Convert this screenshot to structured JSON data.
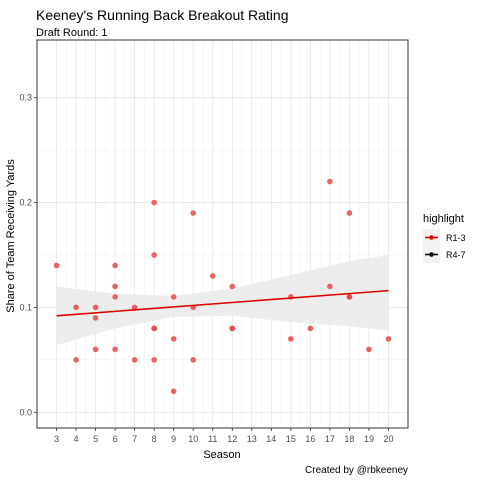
{
  "chart_data": {
    "type": "scatter",
    "title": "Keeney's Running Back Breakout Rating",
    "subtitle": "Draft Round: 1",
    "xlabel": "Season",
    "ylabel": "Share of Team Receiving Yards",
    "caption": "Created by @rbkeeney",
    "xlim": [
      2,
      21
    ],
    "ylim": [
      -0.015,
      0.355
    ],
    "x_ticks": [
      3,
      4,
      5,
      6,
      7,
      8,
      9,
      10,
      11,
      12,
      13,
      14,
      15,
      16,
      17,
      18,
      19,
      20
    ],
    "y_ticks": [
      0.0,
      0.1,
      0.2,
      0.3
    ],
    "y_tick_labels": [
      "0.0",
      "0.1",
      "0.2",
      "0.3"
    ],
    "grid": true,
    "legend": {
      "title": "highlight",
      "position": "right",
      "entries": [
        {
          "label": "R1-3",
          "color": "#dd0000"
        },
        {
          "label": "R4-7",
          "color": "#000000"
        }
      ]
    },
    "series": [
      {
        "name": "R1-3",
        "color": "#e8474c",
        "points": [
          {
            "x": 3,
            "y": 0.14
          },
          {
            "x": 4,
            "y": 0.1
          },
          {
            "x": 4,
            "y": 0.05
          },
          {
            "x": 5,
            "y": 0.1
          },
          {
            "x": 5,
            "y": 0.09
          },
          {
            "x": 5,
            "y": 0.06
          },
          {
            "x": 6,
            "y": 0.14
          },
          {
            "x": 6,
            "y": 0.12
          },
          {
            "x": 6,
            "y": 0.11
          },
          {
            "x": 6,
            "y": 0.06
          },
          {
            "x": 7,
            "y": 0.1
          },
          {
            "x": 7,
            "y": 0.05
          },
          {
            "x": 8,
            "y": 0.2
          },
          {
            "x": 8,
            "y": 0.15
          },
          {
            "x": 8,
            "y": 0.08
          },
          {
            "x": 8,
            "y": 0.08
          },
          {
            "x": 8,
            "y": 0.05
          },
          {
            "x": 9,
            "y": 0.11
          },
          {
            "x": 9,
            "y": 0.07
          },
          {
            "x": 9,
            "y": 0.02
          },
          {
            "x": 10,
            "y": 0.19
          },
          {
            "x": 10,
            "y": 0.1
          },
          {
            "x": 10,
            "y": 0.05
          },
          {
            "x": 11,
            "y": 0.13
          },
          {
            "x": 12,
            "y": 0.12
          },
          {
            "x": 12,
            "y": 0.08
          },
          {
            "x": 12,
            "y": 0.08
          },
          {
            "x": 15,
            "y": 0.11
          },
          {
            "x": 15,
            "y": 0.07
          },
          {
            "x": 16,
            "y": 0.08
          },
          {
            "x": 17,
            "y": 0.22
          },
          {
            "x": 17,
            "y": 0.12
          },
          {
            "x": 18,
            "y": 0.19
          },
          {
            "x": 18,
            "y": 0.11
          },
          {
            "x": 18,
            "y": 0.11
          },
          {
            "x": 19,
            "y": 0.06
          },
          {
            "x": 20,
            "y": 0.07
          }
        ]
      }
    ],
    "trend": {
      "color": "#dd0000",
      "band_color": "#ebebeb",
      "points": [
        {
          "x": 3,
          "y": 0.092,
          "lo": 0.064,
          "hi": 0.12
        },
        {
          "x": 6,
          "y": 0.096,
          "lo": 0.08,
          "hi": 0.113
        },
        {
          "x": 9,
          "y": 0.101,
          "lo": 0.091,
          "hi": 0.111
        },
        {
          "x": 12,
          "y": 0.105,
          "lo": 0.092,
          "hi": 0.118
        },
        {
          "x": 15,
          "y": 0.109,
          "lo": 0.086,
          "hi": 0.131
        },
        {
          "x": 18,
          "y": 0.113,
          "lo": 0.082,
          "hi": 0.144
        },
        {
          "x": 20,
          "y": 0.116,
          "lo": 0.078,
          "hi": 0.15
        }
      ]
    }
  }
}
